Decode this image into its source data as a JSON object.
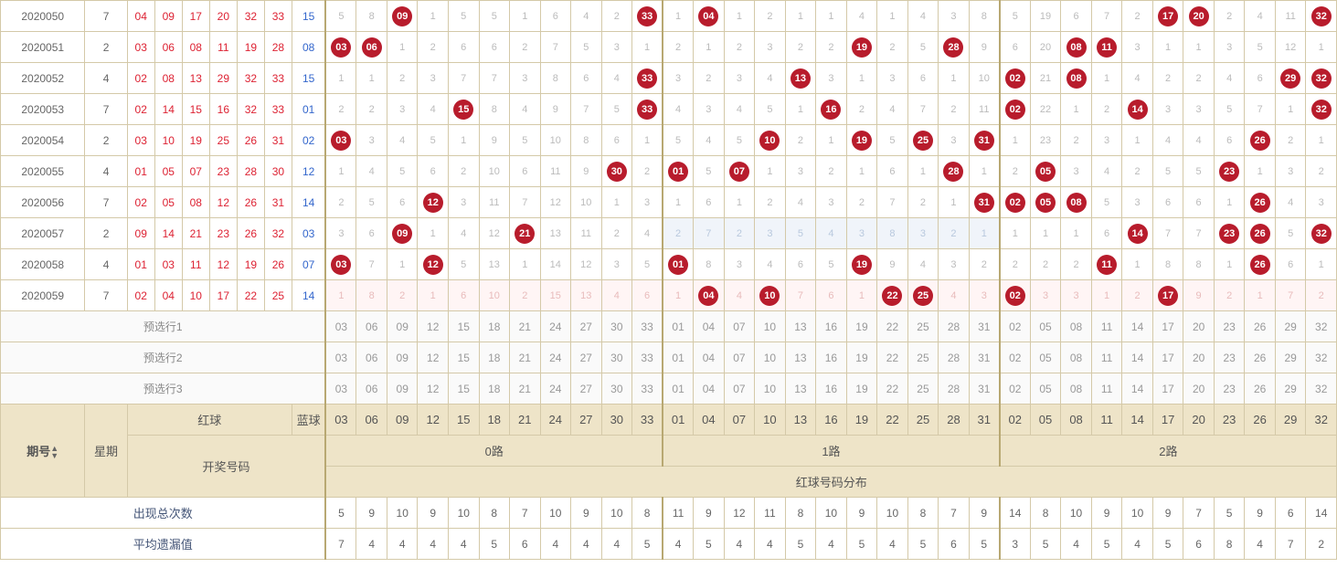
{
  "colors": {
    "ball": "#b81c2c",
    "red_text": "#d23",
    "blue_text": "#36c",
    "header_bg": "#eee4c8",
    "border": "#d4c9a8",
    "row_hl": "#fff5f5",
    "blue_hl": "#f0f4fa"
  },
  "sections": {
    "s0": {
      "label": "0路",
      "nums": [
        "03",
        "06",
        "09",
        "12",
        "15",
        "18",
        "21",
        "24",
        "27",
        "30",
        "33"
      ]
    },
    "s1": {
      "label": "1路",
      "nums": [
        "01",
        "04",
        "07",
        "10",
        "13",
        "16",
        "19",
        "22",
        "25",
        "28",
        "31"
      ]
    },
    "s2": {
      "label": "2路",
      "nums": [
        "02",
        "05",
        "08",
        "11",
        "14",
        "17",
        "20",
        "23",
        "26",
        "29",
        "32"
      ]
    }
  },
  "labels": {
    "presel1": "预选行1",
    "presel2": "预选行2",
    "presel3": "预选行3",
    "issue": "期号",
    "week": "星期",
    "red": "红球",
    "blue": "蓝球",
    "lottery": "开奖号码",
    "distrib": "红球号码分布",
    "total": "出现总次数",
    "avg": "平均遗漏值"
  },
  "rows": [
    {
      "issue": "2020050",
      "week": "7",
      "reds": [
        "04",
        "09",
        "17",
        "20",
        "32",
        "33"
      ],
      "blue": "15",
      "hl": false,
      "c0": [
        "5",
        "8",
        "B09",
        "1",
        "5",
        "5",
        "1",
        "6",
        "4",
        "2",
        "B33"
      ],
      "c1": [
        "1",
        "B04",
        "1",
        "2",
        "1",
        "1",
        "4",
        "1",
        "4",
        "3",
        "8"
      ],
      "c2": [
        "5",
        "19",
        "6",
        "7",
        "2",
        "B17",
        "B20",
        "2",
        "4",
        "11",
        "B32"
      ]
    },
    {
      "issue": "2020051",
      "week": "2",
      "reds": [
        "03",
        "06",
        "08",
        "11",
        "19",
        "28"
      ],
      "blue": "08",
      "hl": false,
      "c0": [
        "B03",
        "B06",
        "1",
        "2",
        "6",
        "6",
        "2",
        "7",
        "5",
        "3",
        "1"
      ],
      "c1": [
        "2",
        "1",
        "2",
        "3",
        "2",
        "2",
        "B19",
        "2",
        "5",
        "B28",
        "9"
      ],
      "c2": [
        "6",
        "20",
        "B08",
        "B11",
        "3",
        "1",
        "1",
        "3",
        "5",
        "12",
        "1"
      ]
    },
    {
      "issue": "2020052",
      "week": "4",
      "reds": [
        "02",
        "08",
        "13",
        "29",
        "32",
        "33"
      ],
      "blue": "15",
      "hl": false,
      "c0": [
        "1",
        "1",
        "2",
        "3",
        "7",
        "7",
        "3",
        "8",
        "6",
        "4",
        "B33"
      ],
      "c1": [
        "3",
        "2",
        "3",
        "4",
        "B13",
        "3",
        "1",
        "3",
        "6",
        "1",
        "10"
      ],
      "c2": [
        "B02",
        "21",
        "B08",
        "1",
        "4",
        "2",
        "2",
        "4",
        "6",
        "B29",
        "B32"
      ]
    },
    {
      "issue": "2020053",
      "week": "7",
      "reds": [
        "02",
        "14",
        "15",
        "16",
        "32",
        "33"
      ],
      "blue": "01",
      "hl": false,
      "c0": [
        "2",
        "2",
        "3",
        "4",
        "B15",
        "8",
        "4",
        "9",
        "7",
        "5",
        "B33"
      ],
      "c1": [
        "4",
        "3",
        "4",
        "5",
        "1",
        "B16",
        "2",
        "4",
        "7",
        "2",
        "11"
      ],
      "c2": [
        "B02",
        "22",
        "1",
        "2",
        "B14",
        "3",
        "3",
        "5",
        "7",
        "1",
        "B32"
      ]
    },
    {
      "issue": "2020054",
      "week": "2",
      "reds": [
        "03",
        "10",
        "19",
        "25",
        "26",
        "31"
      ],
      "blue": "02",
      "hl": false,
      "c0": [
        "B03",
        "3",
        "4",
        "5",
        "1",
        "9",
        "5",
        "10",
        "8",
        "6",
        "1"
      ],
      "c1": [
        "5",
        "4",
        "5",
        "B10",
        "2",
        "1",
        "B19",
        "5",
        "B25",
        "3",
        "B31"
      ],
      "c2": [
        "1",
        "23",
        "2",
        "3",
        "1",
        "4",
        "4",
        "6",
        "B26",
        "2",
        "1"
      ]
    },
    {
      "issue": "2020055",
      "week": "4",
      "reds": [
        "01",
        "05",
        "07",
        "23",
        "28",
        "30"
      ],
      "blue": "12",
      "hl": false,
      "c0": [
        "1",
        "4",
        "5",
        "6",
        "2",
        "10",
        "6",
        "11",
        "9",
        "B30",
        "2"
      ],
      "c1": [
        "B01",
        "5",
        "B07",
        "1",
        "3",
        "2",
        "1",
        "6",
        "1",
        "B28",
        "1"
      ],
      "c2": [
        "2",
        "B05",
        "3",
        "4",
        "2",
        "5",
        "5",
        "B23",
        "1",
        "3",
        "2"
      ]
    },
    {
      "issue": "2020056",
      "week": "7",
      "reds": [
        "02",
        "05",
        "08",
        "12",
        "26",
        "31"
      ],
      "blue": "14",
      "hl": false,
      "c0": [
        "2",
        "5",
        "6",
        "B12",
        "3",
        "11",
        "7",
        "12",
        "10",
        "1",
        "3"
      ],
      "c1": [
        "1",
        "6",
        "1",
        "2",
        "4",
        "3",
        "2",
        "7",
        "2",
        "1",
        "B31"
      ],
      "c2": [
        "B02",
        "B05",
        "B08",
        "5",
        "3",
        "6",
        "6",
        "1",
        "B26",
        "4",
        "3"
      ]
    },
    {
      "issue": "2020057",
      "week": "2",
      "reds": [
        "09",
        "14",
        "21",
        "23",
        "26",
        "32"
      ],
      "blue": "03",
      "hl": true,
      "c0": [
        "3",
        "6",
        "B09",
        "1",
        "4",
        "12",
        "B21",
        "13",
        "11",
        "2",
        "4"
      ],
      "c1": [
        "2",
        "7",
        "2",
        "3",
        "5",
        "4",
        "3",
        "8",
        "3",
        "2",
        "1"
      ],
      "c2": [
        "1",
        "1",
        "1",
        "6",
        "B14",
        "7",
        "7",
        "B23",
        "B26",
        "5",
        "B32"
      ]
    },
    {
      "issue": "2020058",
      "week": "4",
      "reds": [
        "01",
        "03",
        "11",
        "12",
        "19",
        "26"
      ],
      "blue": "07",
      "hl": false,
      "c0": [
        "B03",
        "7",
        "1",
        "B12",
        "5",
        "13",
        "1",
        "14",
        "12",
        "3",
        "5"
      ],
      "c1": [
        "B01",
        "8",
        "3",
        "4",
        "6",
        "5",
        "B19",
        "9",
        "4",
        "3",
        "2"
      ],
      "c2": [
        "2",
        "2",
        "2",
        "B11",
        "1",
        "8",
        "8",
        "1",
        "B26",
        "6",
        "1"
      ]
    },
    {
      "issue": "2020059",
      "week": "7",
      "reds": [
        "02",
        "04",
        "10",
        "17",
        "22",
        "25"
      ],
      "blue": "14",
      "hl": "pink",
      "c0": [
        "1",
        "8",
        "2",
        "1",
        "6",
        "10",
        "2",
        "15",
        "13",
        "4",
        "6"
      ],
      "c1": [
        "1",
        "B04",
        "4",
        "B10",
        "7",
        "6",
        "1",
        "B22",
        "B25",
        "4",
        "3"
      ],
      "c2": [
        "B02",
        "3",
        "3",
        "1",
        "2",
        "B17",
        "9",
        "2",
        "1",
        "7",
        "2"
      ]
    }
  ],
  "totals": [
    "5",
    "9",
    "10",
    "9",
    "10",
    "8",
    "7",
    "10",
    "9",
    "10",
    "8",
    "11",
    "9",
    "12",
    "11",
    "8",
    "10",
    "9",
    "10",
    "8",
    "7",
    "9",
    "14",
    "8",
    "10",
    "9",
    "10",
    "9",
    "7",
    "5",
    "9",
    "6",
    "14"
  ],
  "avg": [
    "7",
    "4",
    "4",
    "4",
    "4",
    "5",
    "6",
    "4",
    "4",
    "4",
    "5",
    "4",
    "5",
    "4",
    "4",
    "5",
    "4",
    "5",
    "4",
    "5",
    "6",
    "5",
    "3",
    "5",
    "4",
    "5",
    "4",
    "5",
    "6",
    "8",
    "4",
    "7",
    "2"
  ]
}
